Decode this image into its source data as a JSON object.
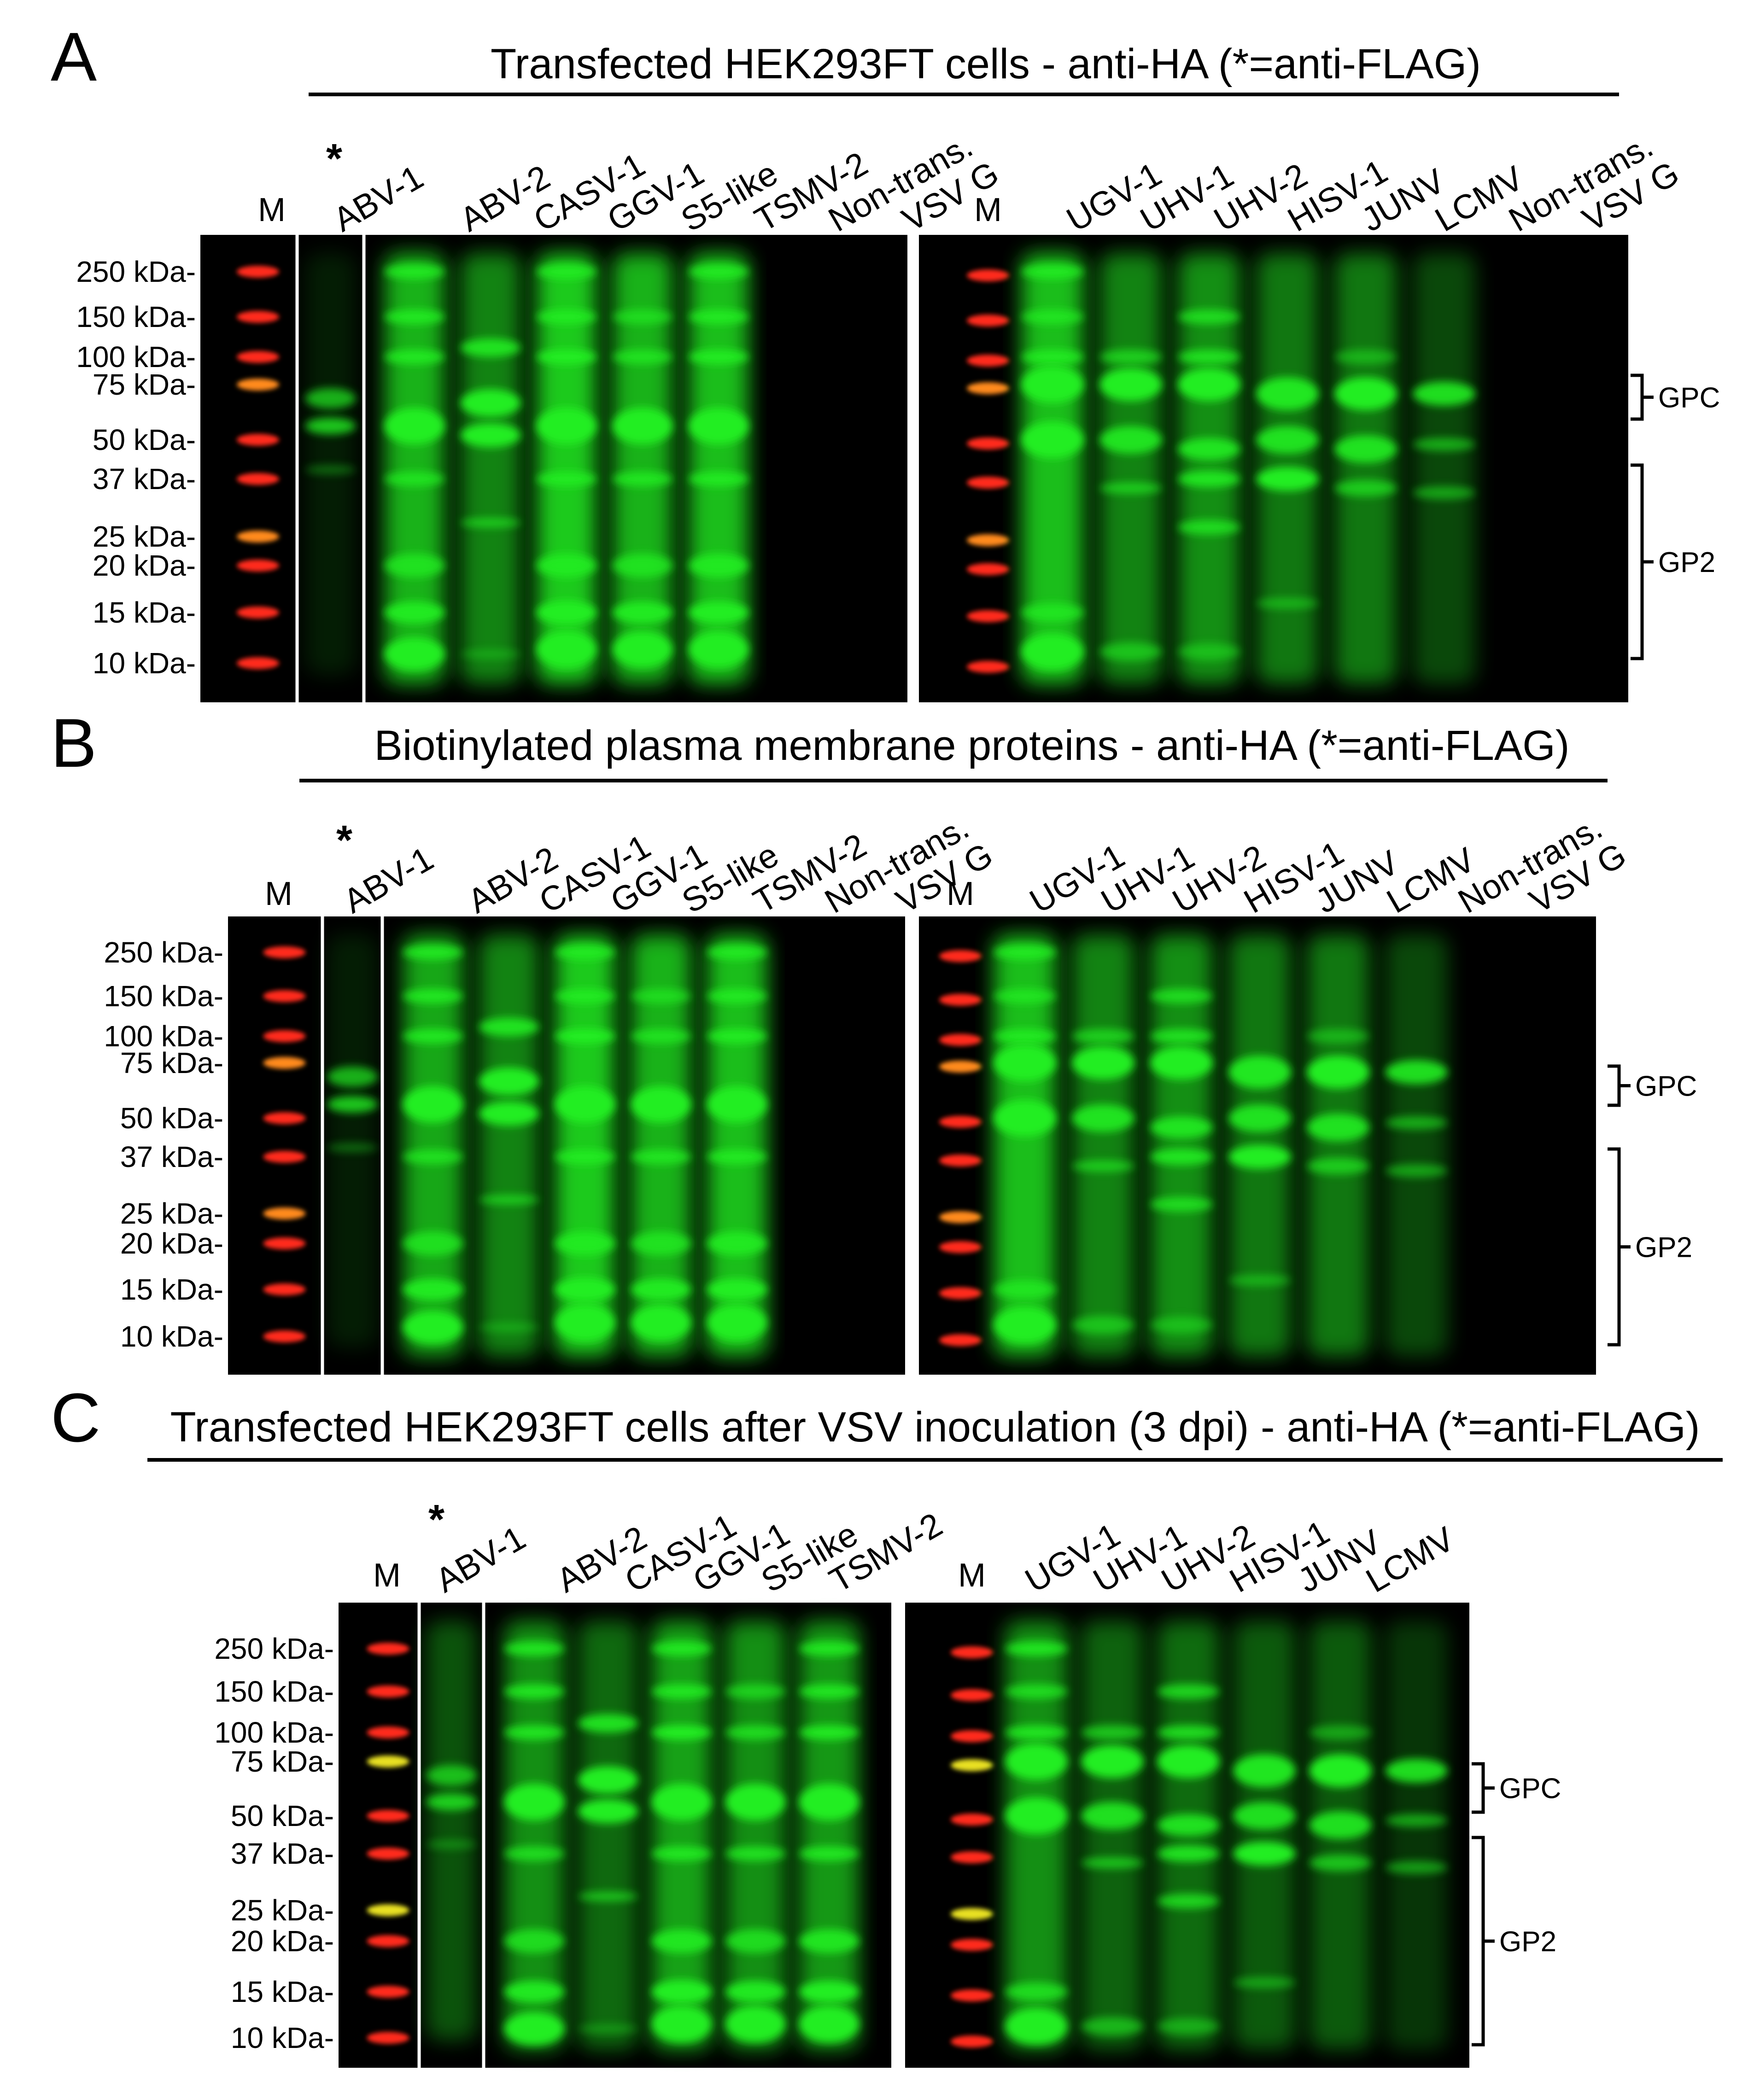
{
  "markers": [
    "250 kDa-",
    "150 kDa-",
    "100 kDa-",
    "75 kDa-",
    "50 kDa-",
    "37 kDa-",
    "25 kDa-",
    "20 kDa-",
    "15 kDa-",
    "10 kDa-"
  ],
  "lane_m": "M",
  "asterisk": "*",
  "gpc_label": "GPC",
  "gp2_label": "GP2",
  "panels": [
    {
      "letter": "A",
      "title": "Transfected HEK293FT cells - anti-HA (*=anti-FLAG)",
      "left_lanes": [
        "ABV-1",
        "ABV-2",
        "CASV-1",
        "GGV-1",
        "S5-like",
        "TSMV-2",
        "Non-trans.",
        "VSV G"
      ],
      "right_lanes": [
        "UGV-1",
        "UHV-1",
        "UHV-2",
        "HISV-1",
        "JUNV",
        "LCMV",
        "Non-trans.",
        "VSV G"
      ]
    },
    {
      "letter": "B",
      "title": "Biotinylated plasma membrane proteins - anti-HA (*=anti-FLAG)",
      "left_lanes": [
        "ABV-1",
        "ABV-2",
        "CASV-1",
        "GGV-1",
        "S5-like",
        "TSMV-2",
        "Non-trans.",
        "VSV G"
      ],
      "right_lanes": [
        "UGV-1",
        "UHV-1",
        "UHV-2",
        "HISV-1",
        "JUNV",
        "LCMV",
        "Non-trans.",
        "VSV G"
      ]
    },
    {
      "letter": "C",
      "title": "Transfected HEK293FT cells after VSV inoculation (3 dpi) - anti-HA (*=anti-FLAG)",
      "left_lanes": [
        "ABV-1",
        "ABV-2",
        "CASV-1",
        "GGV-1",
        "S5-like",
        "TSMV-2"
      ],
      "right_lanes": [
        "UGV-1",
        "UHV-1",
        "UHV-2",
        "HISV-1",
        "JUNV",
        "LCMV"
      ]
    }
  ],
  "colors": {
    "band_green": "#22ee22",
    "ladder_red": "#ff2a1a",
    "ladder_orange": "#ff8a1a",
    "ladder_yellow": "#e8e020",
    "blot_bg": "#000000"
  }
}
